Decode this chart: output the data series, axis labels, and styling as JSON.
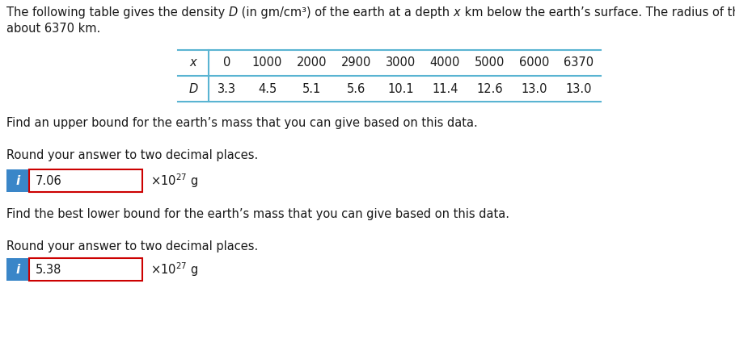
{
  "title_seg1": "The following table gives the density ",
  "title_D": "D",
  "title_seg2": " (in gm/cm³) of the earth at a depth ",
  "title_x": "x",
  "title_seg3": " km below the earth’s surface. The radius of the earth is",
  "title_line2": "about 6370 km.",
  "table_x_label": "x",
  "table_D_label": "D",
  "x_values": [
    "0",
    "1000",
    "2000",
    "2900",
    "3000",
    "4000",
    "5000",
    "6000",
    "6370"
  ],
  "D_values": [
    "3.3",
    "4.5",
    "5.1",
    "5.6",
    "10.1",
    "11.4",
    "12.6",
    "13.0",
    "13.0"
  ],
  "question1": "Find an upper bound for the earth’s mass that you can give based on this data.",
  "question2": "Find the best lower bound for the earth’s mass that you can give based on this data.",
  "round_text": "Round your answer to two decimal places.",
  "upper_value": "7.06",
  "lower_value": "5.38",
  "table_border_color": "#5ab4d2",
  "input_box_color": "#3a86c8",
  "input_border_color": "#cc0000",
  "bg_color": "#ffffff",
  "text_color": "#1a1a1a",
  "font_size_body": 10.5,
  "font_size_table": 10.5
}
